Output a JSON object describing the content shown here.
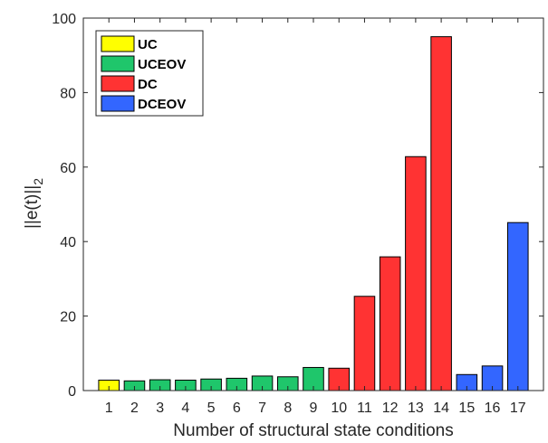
{
  "chart_data": {
    "type": "bar",
    "categories": [
      "1",
      "2",
      "3",
      "4",
      "5",
      "6",
      "7",
      "8",
      "9",
      "10",
      "11",
      "12",
      "13",
      "14",
      "15",
      "16",
      "17"
    ],
    "values": [
      2.8,
      2.6,
      2.9,
      2.8,
      3.1,
      3.3,
      3.9,
      3.7,
      6.2,
      6.0,
      25.3,
      35.9,
      62.8,
      95.0,
      4.3,
      6.6,
      45.1
    ],
    "groups": [
      "UC",
      "UCEOV",
      "UCEOV",
      "UCEOV",
      "UCEOV",
      "UCEOV",
      "UCEOV",
      "UCEOV",
      "UCEOV",
      "DC",
      "DC",
      "DC",
      "DC",
      "DC",
      "DCEOV",
      "DCEOV",
      "DCEOV"
    ],
    "legend": [
      {
        "label": "UC",
        "color": "#ffff00"
      },
      {
        "label": "UCEOV",
        "color": "#1fc66b"
      },
      {
        "label": "DC",
        "color": "#ff3333"
      },
      {
        "label": "DCEOV",
        "color": "#3366ff"
      }
    ],
    "legend_position": "top-left",
    "xlabel": "Number of structural state conditions",
    "ylabel_main": "||e(t)||",
    "ylabel_sub": "2",
    "ylim": [
      0,
      100
    ],
    "yticks": [
      0,
      20,
      40,
      60,
      80,
      100
    ],
    "grid": false
  }
}
